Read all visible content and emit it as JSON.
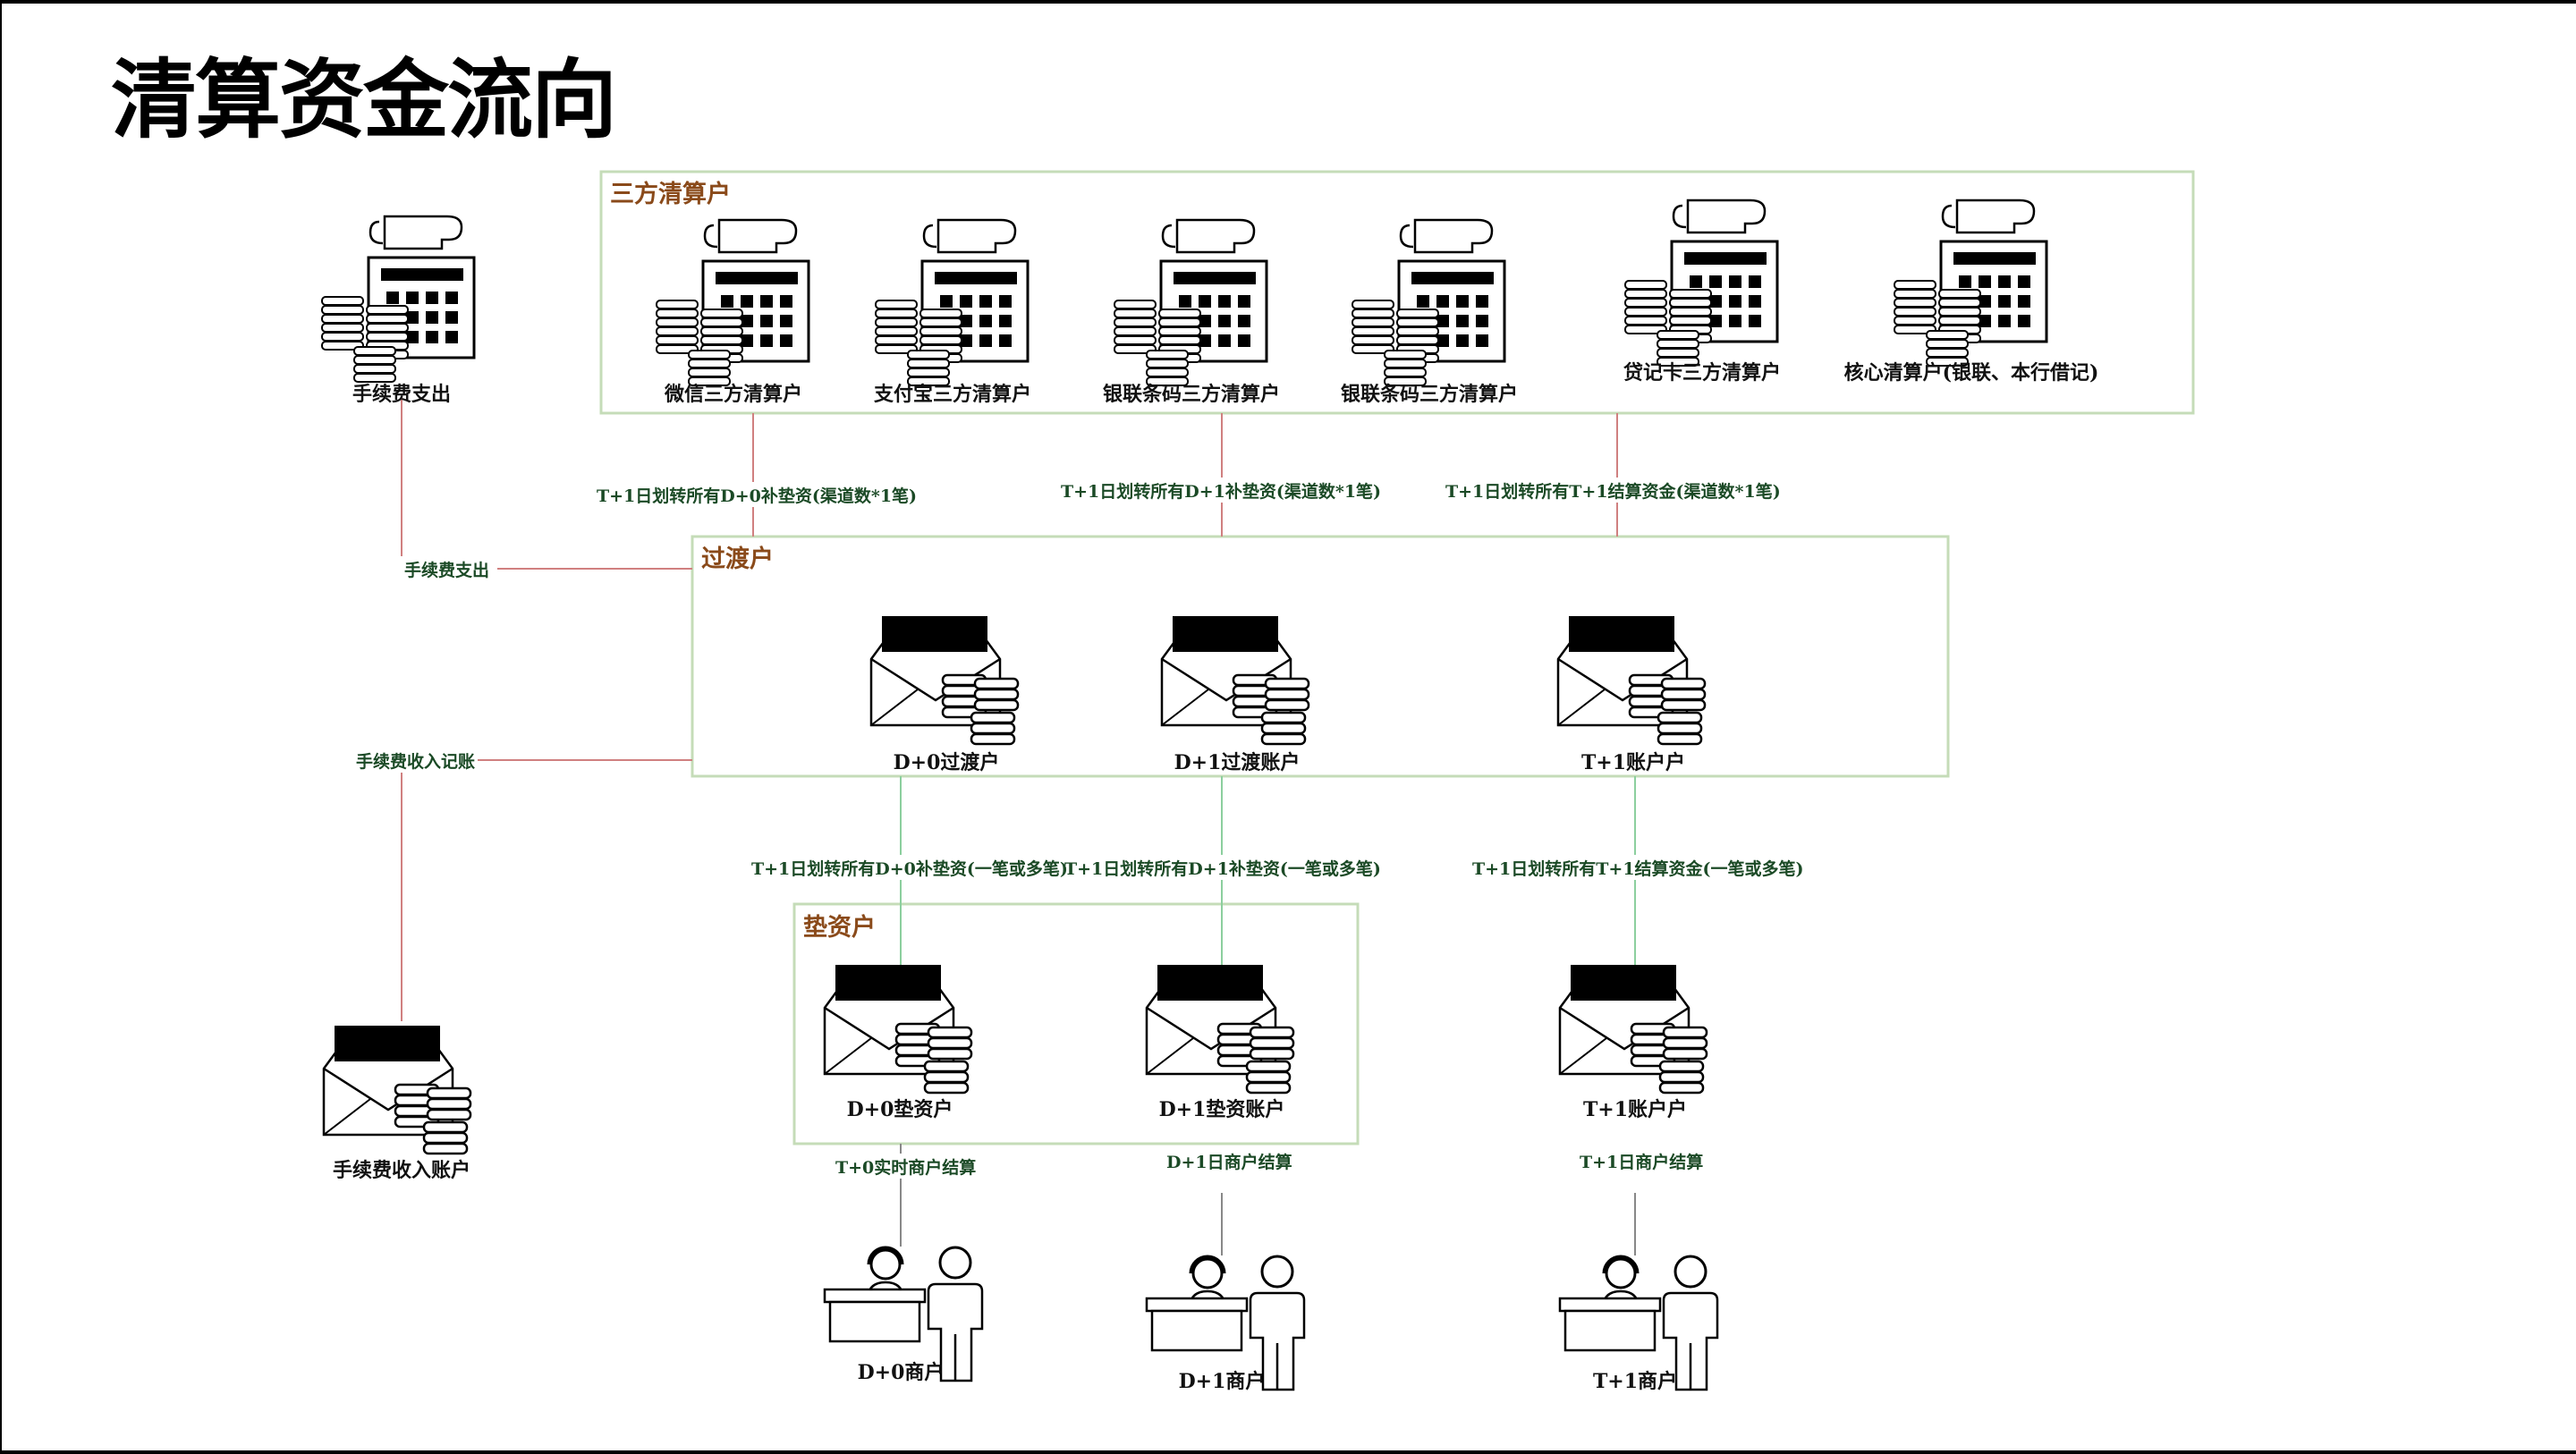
{
  "title": "清算资金流向",
  "colors": {
    "group_border": "#c5dcb8",
    "group_label": "#8a4a1a",
    "edge_red": "#d08080",
    "edge_green": "#8ccf9e",
    "edge_gray": "#888888",
    "edge_label": "#1b4a26"
  },
  "groups": {
    "third_party": "三方清算户",
    "transit": "过渡户",
    "advance": "垫资户"
  },
  "nodes": {
    "fee_expense": {
      "label": "手续费支出",
      "icon": "calculator-coins-icon"
    },
    "wechat": {
      "label": "微信三方清算户",
      "icon": "calculator-coins-icon"
    },
    "alipay": {
      "label": "支付宝三方清算户",
      "icon": "calculator-coins-icon"
    },
    "unionpay_qr_1": {
      "label": "银联条码三方清算户",
      "icon": "calculator-coins-icon"
    },
    "unionpay_qr_2": {
      "label": "银联条码三方清算户",
      "icon": "calculator-coins-icon"
    },
    "credit_card": {
      "label": "贷记卡三方清算户",
      "icon": "calculator-coins-icon"
    },
    "core": {
      "label": "核心清算户(银联、本行借记)",
      "icon": "calculator-coins-icon"
    },
    "d0_transit": {
      "label": "D+0过渡户",
      "icon": "envelope-coins-icon"
    },
    "d1_transit": {
      "label": "D+1过渡账户",
      "icon": "envelope-coins-icon"
    },
    "t1_transit": {
      "label": "T+1账户户",
      "icon": "envelope-coins-icon"
    },
    "d0_advance": {
      "label": "D+0垫资户",
      "icon": "envelope-coins-icon"
    },
    "d1_advance": {
      "label": "D+1垫资账户",
      "icon": "envelope-coins-icon"
    },
    "t1_account": {
      "label": "T+1账户户",
      "icon": "envelope-coins-icon"
    },
    "fee_income": {
      "label": "手续费收入账户",
      "icon": "envelope-coins-icon"
    },
    "d0_merchant": {
      "label": "D+0商户",
      "icon": "merchant-desk-icon"
    },
    "d1_merchant": {
      "label": "D+1商户",
      "icon": "merchant-desk-icon"
    },
    "t1_merchant": {
      "label": "T+1商户",
      "icon": "merchant-desk-icon"
    }
  },
  "edges": {
    "fee_expense_flow": "手续费支出",
    "d0_to_transit": "T+1日划转所有D+0补垫资(渠道数*1笔)",
    "d1_to_transit": "T+1日划转所有D+1补垫资(渠道数*1笔)",
    "t1_to_transit": "T+1日划转所有T+1结算资金(渠道数*1笔)",
    "fee_income_flow": "手续费收入记账",
    "d0_transit_to_advance": "T+1日划转所有D+0补垫资(一笔或多笔)",
    "d1_transit_to_advance": "T+1日划转所有D+1补垫资(一笔或多笔)",
    "t1_transit_to_account": "T+1日划转所有T+1结算资金(一笔或多笔)",
    "d0_settle": "T+0实时商户结算",
    "d1_settle": "D+1日商户结算",
    "t1_settle": "T+1日商户结算"
  }
}
